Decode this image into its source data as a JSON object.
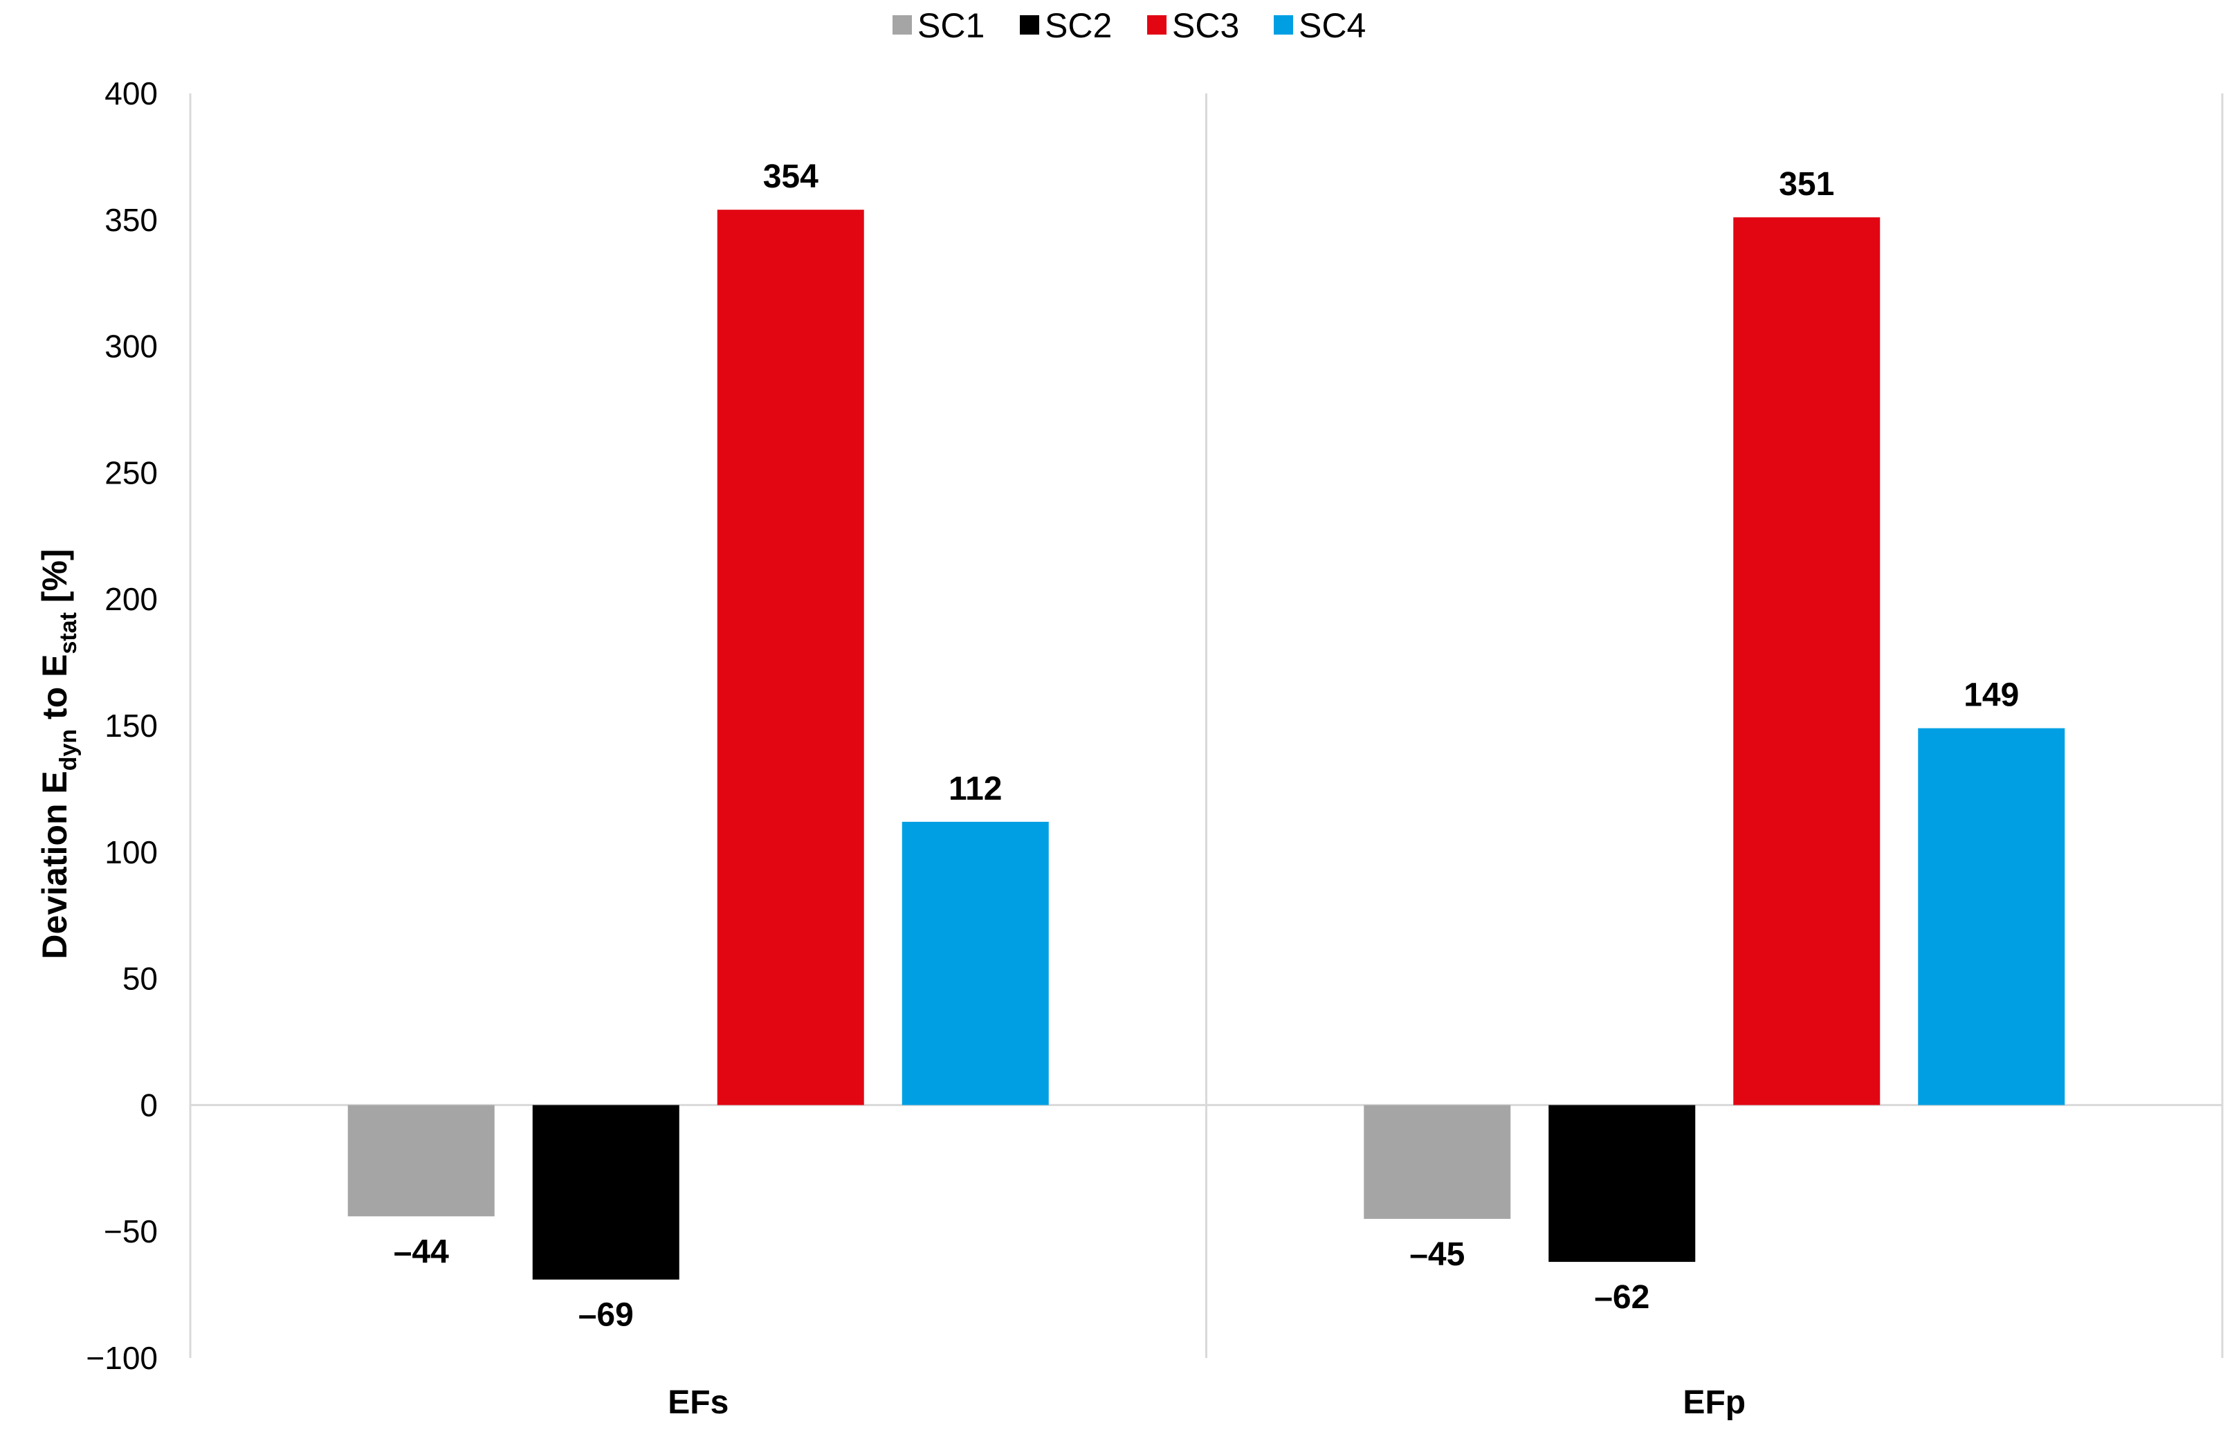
{
  "chart_data": {
    "type": "bar",
    "categories": [
      "EFs",
      "EFp"
    ],
    "series": [
      {
        "name": "SC1",
        "color": "#a5a5a5",
        "values": [
          -44,
          -45
        ],
        "labels": [
          "–44",
          "–45"
        ]
      },
      {
        "name": "SC2",
        "color": "#000000",
        "values": [
          -69,
          -62
        ],
        "labels": [
          "–69",
          "–62"
        ]
      },
      {
        "name": "SC3",
        "color": "#e20613",
        "values": [
          354,
          351
        ],
        "labels": [
          "354",
          "351"
        ]
      },
      {
        "name": "SC4",
        "color": "#009fe3",
        "values": [
          112,
          149
        ],
        "labels": [
          "112",
          "149"
        ]
      }
    ],
    "ylabel": {
      "main": "Deviation E",
      "sub1": "dyn",
      "mid": " to E",
      "sub2": "stat",
      "end": " [%]"
    },
    "ylim": [
      -100,
      400
    ],
    "yticks": [
      400,
      350,
      300,
      250,
      200,
      150,
      100,
      50,
      0,
      -50,
      -100
    ],
    "ytick_labels": [
      "400",
      "350",
      "300",
      "250",
      "200",
      "150",
      "100",
      "50",
      "0",
      "−50",
      "−100"
    ],
    "legend": {
      "position": "top-center"
    },
    "grid": false,
    "category_separators": true,
    "axis_color": "#d9d9d9"
  }
}
